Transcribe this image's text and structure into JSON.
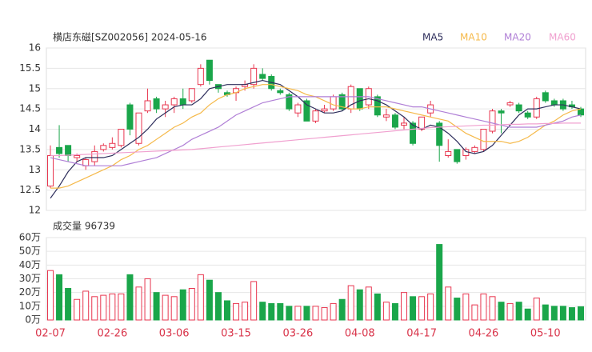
{
  "chart_data": [
    {
      "type": "candlestick",
      "title": "横店东磁[SZ002056] 2024-05-16",
      "categories": [
        "02-07",
        null,
        null,
        null,
        null,
        null,
        null,
        "02-26",
        null,
        null,
        null,
        null,
        null,
        null,
        "03-06",
        null,
        null,
        null,
        null,
        null,
        null,
        "03-15",
        null,
        null,
        null,
        null,
        null,
        null,
        "03-26",
        null,
        null,
        null,
        null,
        null,
        null,
        "04-08",
        null,
        null,
        null,
        null,
        null,
        null,
        "04-17",
        null,
        null,
        null,
        null,
        null,
        null,
        "04-26",
        null,
        null,
        null,
        null,
        null,
        null,
        "05-10",
        null,
        null,
        null,
        null
      ],
      "open": [
        12.6,
        13.55,
        13.6,
        13.3,
        13.1,
        13.2,
        13.5,
        13.55,
        13.6,
        14.6,
        13.65,
        14.45,
        14.75,
        14.5,
        14.6,
        14.75,
        14.7,
        15.1,
        15.7,
        15.1,
        14.9,
        14.9,
        15.05,
        15.1,
        15.35,
        15.3,
        14.95,
        14.85,
        14.4,
        14.7,
        14.2,
        14.45,
        14.5,
        14.85,
        14.5,
        15.0,
        14.6,
        14.8,
        14.3,
        14.35,
        14.1,
        14.15,
        14.0,
        14.4,
        14.15,
        13.35,
        13.5,
        13.35,
        13.45,
        13.5,
        13.95,
        14.45,
        14.6,
        14.6,
        14.4,
        14.3,
        14.9,
        14.7,
        14.7,
        14.6,
        14.5
      ],
      "high": [
        13.6,
        14.1,
        13.6,
        13.4,
        13.3,
        13.6,
        13.65,
        13.8,
        14.0,
        14.65,
        14.4,
        15.0,
        14.8,
        14.7,
        14.8,
        15.0,
        15.0,
        15.6,
        15.7,
        15.1,
        14.95,
        15.05,
        15.2,
        15.6,
        15.5,
        15.35,
        15.0,
        14.9,
        14.65,
        14.75,
        14.5,
        14.6,
        14.85,
        14.9,
        15.1,
        15.0,
        15.05,
        14.85,
        14.5,
        14.4,
        14.3,
        14.2,
        14.3,
        14.7,
        14.2,
        13.75,
        13.5,
        13.55,
        13.6,
        14.0,
        14.5,
        14.5,
        14.7,
        14.65,
        14.45,
        14.8,
        14.95,
        14.75,
        14.75,
        14.7,
        14.55
      ],
      "low": [
        12.55,
        13.3,
        13.2,
        13.2,
        13.0,
        13.1,
        13.45,
        13.5,
        13.55,
        13.85,
        13.6,
        14.4,
        14.4,
        14.3,
        14.4,
        14.5,
        14.65,
        15.05,
        15.1,
        14.9,
        14.8,
        14.7,
        14.95,
        15.0,
        15.2,
        14.95,
        14.85,
        14.45,
        14.3,
        14.2,
        14.15,
        14.4,
        14.45,
        14.45,
        14.4,
        14.45,
        14.5,
        14.3,
        14.2,
        14.0,
        14.0,
        13.6,
        13.95,
        14.3,
        13.2,
        13.3,
        13.15,
        13.25,
        13.4,
        13.45,
        13.9,
        13.9,
        14.55,
        14.4,
        14.25,
        14.25,
        14.65,
        14.55,
        14.45,
        14.5,
        14.3
      ],
      "close": [
        13.35,
        13.4,
        13.35,
        13.35,
        13.25,
        13.45,
        13.6,
        13.65,
        14.0,
        14.0,
        14.4,
        14.7,
        14.5,
        14.6,
        14.75,
        14.6,
        15.0,
        15.5,
        15.2,
        15.0,
        14.85,
        15.0,
        15.1,
        15.5,
        15.25,
        15.0,
        14.9,
        14.5,
        14.6,
        14.2,
        14.45,
        14.5,
        14.8,
        14.5,
        15.05,
        14.5,
        15.0,
        14.35,
        14.35,
        14.05,
        14.15,
        13.65,
        14.3,
        14.6,
        13.6,
        13.45,
        13.2,
        13.5,
        13.55,
        14.0,
        14.45,
        14.4,
        14.65,
        14.45,
        14.3,
        14.75,
        14.7,
        14.6,
        14.5,
        14.55,
        14.35
      ],
      "up_color": "#e8364f",
      "down_color": "#1aa64a",
      "ylim": [
        12,
        16
      ],
      "yticks": [
        12,
        12.5,
        13,
        13.5,
        14,
        14.5,
        15,
        15.5,
        16
      ],
      "grid": true,
      "legend": "top-right",
      "series": [
        {
          "name": "MA5",
          "color": "#2e2e5c",
          "values": [
            12.3,
            12.6,
            12.95,
            13.2,
            13.3,
            13.3,
            13.3,
            13.35,
            13.5,
            13.65,
            13.8,
            14.0,
            14.25,
            14.4,
            14.55,
            14.6,
            14.6,
            14.75,
            15.0,
            15.05,
            15.1,
            15.1,
            15.1,
            15.15,
            15.2,
            15.15,
            15.1,
            14.95,
            14.8,
            14.6,
            14.5,
            14.4,
            14.4,
            14.45,
            14.6,
            14.7,
            14.75,
            14.7,
            14.6,
            14.45,
            14.3,
            14.1,
            14.0,
            14.1,
            14.05,
            13.9,
            13.7,
            13.45,
            13.4,
            13.45,
            13.6,
            13.85,
            14.1,
            14.35,
            14.5,
            14.5,
            14.55,
            14.6,
            14.6,
            14.55,
            14.5
          ]
        },
        {
          "name": "MA10",
          "color": "#f5b94a",
          "values": [
            12.55,
            12.55,
            12.6,
            12.7,
            12.8,
            12.9,
            13.0,
            13.1,
            13.25,
            13.35,
            13.5,
            13.6,
            13.75,
            13.9,
            14.05,
            14.15,
            14.3,
            14.4,
            14.6,
            14.75,
            14.85,
            14.9,
            15.0,
            15.05,
            15.1,
            15.1,
            15.05,
            15.0,
            14.95,
            14.85,
            14.8,
            14.7,
            14.6,
            14.55,
            14.5,
            14.5,
            14.55,
            14.55,
            14.55,
            14.5,
            14.45,
            14.4,
            14.35,
            14.3,
            14.25,
            14.2,
            14.05,
            13.9,
            13.8,
            13.7,
            13.7,
            13.7,
            13.65,
            13.7,
            13.8,
            13.95,
            14.1,
            14.2,
            14.35,
            14.45,
            14.5
          ]
        },
        {
          "name": "MA20",
          "color": "#b07fd6",
          "values": [
            13.3,
            13.25,
            13.2,
            13.15,
            13.1,
            13.1,
            13.1,
            13.1,
            13.1,
            13.15,
            13.2,
            13.25,
            13.3,
            13.4,
            13.5,
            13.6,
            13.75,
            13.85,
            13.95,
            14.05,
            14.2,
            14.35,
            14.45,
            14.55,
            14.65,
            14.7,
            14.75,
            14.8,
            14.8,
            14.8,
            14.8,
            14.8,
            14.8,
            14.8,
            14.8,
            14.8,
            14.8,
            14.75,
            14.7,
            14.65,
            14.6,
            14.55,
            14.55,
            14.5,
            14.45,
            14.4,
            14.35,
            14.3,
            14.25,
            14.2,
            14.15,
            14.1,
            14.05,
            14.05,
            14.05,
            14.05,
            14.1,
            14.15,
            14.2,
            14.3,
            14.35
          ]
        },
        {
          "name": "MA60",
          "color": "#f0a0cf",
          "values": [
            13.35,
            13.35,
            13.36,
            13.37,
            13.38,
            13.39,
            13.4,
            13.41,
            13.42,
            13.43,
            13.44,
            13.45,
            13.46,
            13.47,
            13.48,
            13.49,
            13.5,
            13.52,
            13.54,
            13.56,
            13.58,
            13.6,
            13.62,
            13.64,
            13.66,
            13.68,
            13.7,
            13.72,
            13.74,
            13.76,
            13.78,
            13.8,
            13.82,
            13.84,
            13.86,
            13.88,
            13.9,
            13.92,
            13.94,
            13.96,
            13.98,
            14.0,
            14.02,
            14.04,
            14.05,
            14.06,
            14.07,
            14.08,
            14.09,
            14.1,
            14.1,
            14.11,
            14.12,
            14.12,
            14.13,
            14.13,
            14.14,
            14.14,
            14.15,
            14.15,
            14.15
          ]
        }
      ]
    },
    {
      "type": "bar",
      "title": "成交量 96739",
      "values": [
        36,
        33,
        23,
        15,
        21,
        17,
        18,
        19,
        19,
        33,
        24,
        30,
        20,
        18,
        17,
        22,
        23,
        33,
        29,
        20,
        14,
        12,
        13,
        28,
        13,
        12,
        12,
        10,
        10,
        10,
        10,
        9,
        12,
        15,
        25,
        22,
        24,
        19,
        13,
        12,
        20,
        17,
        17,
        19,
        55,
        24,
        16,
        19,
        11,
        19,
        17,
        13,
        12,
        13,
        8,
        16,
        11,
        10,
        10,
        9,
        9.67
      ],
      "ylim": [
        0,
        60
      ],
      "yticks": [
        {
          "value": 0,
          "label": "0万"
        },
        {
          "value": 10,
          "label": "10万"
        },
        {
          "value": 20,
          "label": "20万"
        },
        {
          "value": 30,
          "label": "30万"
        },
        {
          "value": 40,
          "label": "40万"
        },
        {
          "value": 50,
          "label": "50万"
        },
        {
          "value": 60,
          "label": "60万"
        }
      ],
      "grid": true
    }
  ]
}
